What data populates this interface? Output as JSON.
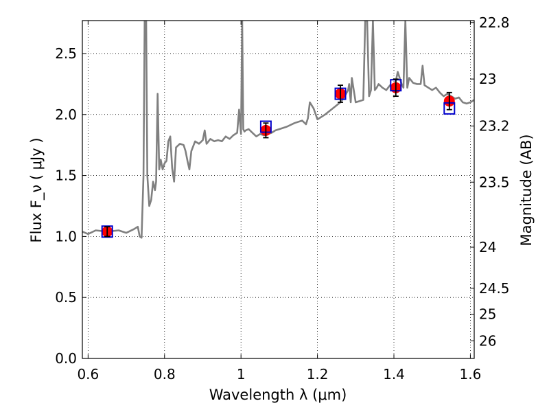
{
  "chart_data": {
    "type": "line",
    "xlabel": "Wavelength  λ (μm)",
    "ylabel": "Flux  F_ν  ( μJy )",
    "ylabel_right": "Magnitude (AB)",
    "xlim": [
      0.585,
      1.61
    ],
    "ylim": [
      0.0,
      2.77
    ],
    "grid": true,
    "x_ticks": [
      0.6,
      0.8,
      1.0,
      1.2,
      1.4,
      1.6
    ],
    "x_tick_labels": [
      "0.6",
      "0.8",
      "1",
      "1.2",
      "1.4",
      "1.6"
    ],
    "y_ticks": [
      0.0,
      0.5,
      1.0,
      1.5,
      2.0,
      2.5
    ],
    "y_tick_labels": [
      "0.0",
      "0.5",
      "1.0",
      "1.5",
      "2.0",
      "2.5"
    ],
    "mag_ticks": [
      "22.8",
      "23",
      "23.2",
      "23.5",
      "24",
      "24.5",
      "25",
      "26"
    ],
    "spectrum_color": "#808080",
    "spectrum": {
      "x": [
        0.585,
        0.6,
        0.62,
        0.65,
        0.68,
        0.7,
        0.72,
        0.73,
        0.735,
        0.74,
        0.745,
        0.748,
        0.75,
        0.752,
        0.755,
        0.76,
        0.765,
        0.77,
        0.775,
        0.778,
        0.782,
        0.786,
        0.79,
        0.795,
        0.8,
        0.805,
        0.81,
        0.815,
        0.82,
        0.825,
        0.83,
        0.84,
        0.85,
        0.855,
        0.86,
        0.865,
        0.87,
        0.88,
        0.89,
        0.9,
        0.905,
        0.91,
        0.92,
        0.93,
        0.94,
        0.95,
        0.96,
        0.97,
        0.98,
        0.99,
        0.995,
        1.0,
        1.003,
        1.006,
        1.009,
        1.012,
        1.02,
        1.03,
        1.04,
        1.05,
        1.06,
        1.07,
        1.08,
        1.09,
        1.1,
        1.12,
        1.14,
        1.16,
        1.17,
        1.175,
        1.18,
        1.19,
        1.2,
        1.22,
        1.24,
        1.26,
        1.27,
        1.28,
        1.283,
        1.287,
        1.29,
        1.3,
        1.31,
        1.32,
        1.325,
        1.33,
        1.335,
        1.34,
        1.345,
        1.35,
        1.355,
        1.36,
        1.37,
        1.38,
        1.39,
        1.4,
        1.41,
        1.42,
        1.425,
        1.43,
        1.435,
        1.44,
        1.45,
        1.46,
        1.47,
        1.475,
        1.48,
        1.49,
        1.5,
        1.51,
        1.52,
        1.53,
        1.54,
        1.55,
        1.56,
        1.57,
        1.58,
        1.59,
        1.6,
        1.61
      ],
      "y": [
        1.04,
        1.02,
        1.05,
        1.04,
        1.05,
        1.03,
        1.06,
        1.08,
        1.0,
        0.99,
        1.5,
        2.77,
        2.77,
        2.77,
        1.5,
        1.25,
        1.3,
        1.45,
        1.38,
        1.45,
        2.17,
        1.55,
        1.63,
        1.55,
        1.6,
        1.62,
        1.78,
        1.82,
        1.56,
        1.45,
        1.73,
        1.76,
        1.75,
        1.7,
        1.62,
        1.55,
        1.7,
        1.78,
        1.76,
        1.79,
        1.87,
        1.76,
        1.8,
        1.78,
        1.79,
        1.78,
        1.82,
        1.8,
        1.83,
        1.85,
        2.04,
        1.84,
        2.77,
        1.88,
        1.86,
        1.87,
        1.88,
        1.85,
        1.82,
        1.84,
        1.83,
        1.84,
        1.85,
        1.87,
        1.88,
        1.9,
        1.93,
        1.95,
        1.92,
        1.97,
        2.1,
        2.05,
        1.96,
        2.0,
        2.05,
        2.1,
        2.14,
        2.2,
        2.25,
        2.1,
        2.3,
        2.1,
        2.11,
        2.12,
        2.77,
        2.77,
        2.15,
        2.2,
        2.77,
        2.2,
        2.22,
        2.25,
        2.22,
        2.2,
        2.24,
        2.2,
        2.35,
        2.25,
        2.22,
        2.77,
        2.22,
        2.3,
        2.26,
        2.25,
        2.25,
        2.4,
        2.24,
        2.22,
        2.2,
        2.22,
        2.18,
        2.15,
        2.17,
        2.15,
        2.13,
        2.14,
        2.1,
        2.09,
        2.1,
        2.12
      ]
    },
    "observed": {
      "color": "#ff0000",
      "x": [
        0.65,
        1.065,
        1.26,
        1.405,
        1.545
      ],
      "y": [
        1.04,
        1.87,
        2.17,
        2.22,
        2.11
      ],
      "err": [
        0.04,
        0.06,
        0.07,
        0.07,
        0.07
      ]
    },
    "model": {
      "color": "#0000cc",
      "x": [
        0.65,
        1.065,
        1.26,
        1.405,
        1.545
      ],
      "y": [
        1.04,
        1.9,
        2.17,
        2.24,
        2.05
      ]
    }
  }
}
